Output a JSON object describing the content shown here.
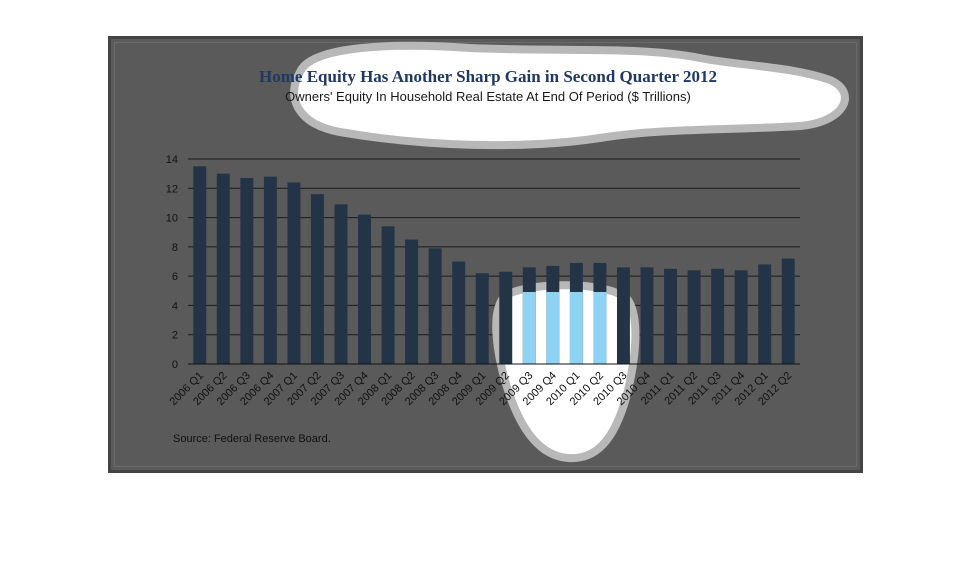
{
  "colors": {
    "frame_bg": "#5a5a5a",
    "bar": "#243447",
    "bar_highlight": "#8fd3f4",
    "title": "#1f3864",
    "highlight_cloud": "#ffffff",
    "highlight_cloud_border": "#b8b8b8"
  },
  "chart_data": {
    "type": "bar",
    "title": "Home Equity Has Another Sharp Gain in Second Quarter 2012",
    "subtitle": "Owners' Equity In Household Real Estate At End Of Period ($ Trillions)",
    "xlabel": "",
    "ylabel": "",
    "ylim": [
      0,
      14
    ],
    "yticks": [
      0,
      2,
      4,
      6,
      8,
      10,
      12,
      14
    ],
    "grid": true,
    "categories": [
      "2006 Q1",
      "2006 Q2",
      "2006 Q3",
      "2006 Q4",
      "2007 Q1",
      "2007 Q2",
      "2007 Q3",
      "2007 Q4",
      "2008 Q1",
      "2008 Q2",
      "2008 Q3",
      "2008 Q4",
      "2009 Q1",
      "2009 Q2",
      "2009 Q3",
      "2009 Q4",
      "2010 Q1",
      "2010 Q2",
      "2010 Q3",
      "2010 Q4",
      "2011 Q1",
      "2011 Q2",
      "2011 Q3",
      "2011 Q4",
      "2012 Q1",
      "2012 Q2"
    ],
    "values": [
      13.5,
      13.0,
      12.7,
      12.8,
      12.4,
      11.6,
      10.9,
      10.2,
      9.4,
      8.5,
      7.9,
      7.0,
      6.2,
      6.3,
      6.6,
      6.7,
      6.9,
      6.9,
      6.6,
      6.6,
      6.5,
      6.4,
      6.5,
      6.4,
      6.8,
      7.2
    ],
    "highlighted_categories": [
      "2009 Q3",
      "2009 Q4",
      "2010 Q1",
      "2010 Q2"
    ],
    "source": "Source:  Federal Reserve Board."
  }
}
